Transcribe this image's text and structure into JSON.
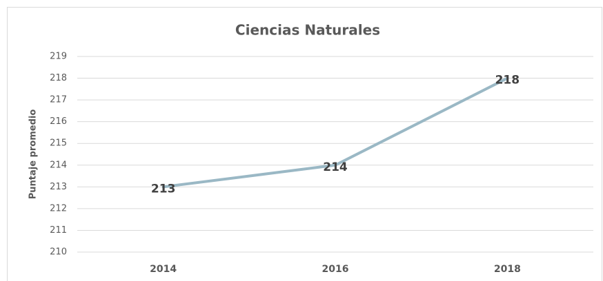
{
  "chart_data": {
    "type": "line",
    "title": "Ciencias Naturales",
    "y_label": "Puntaje promedio",
    "categories": [
      "2014",
      "2016",
      "2018"
    ],
    "values": [
      213,
      214,
      218
    ],
    "color": "#9ab8c5",
    "ylim": [
      210,
      219
    ],
    "yticks": [
      210,
      211,
      212,
      213,
      214,
      215,
      216,
      217,
      218,
      219
    ],
    "grid": true,
    "data_labels": true
  }
}
